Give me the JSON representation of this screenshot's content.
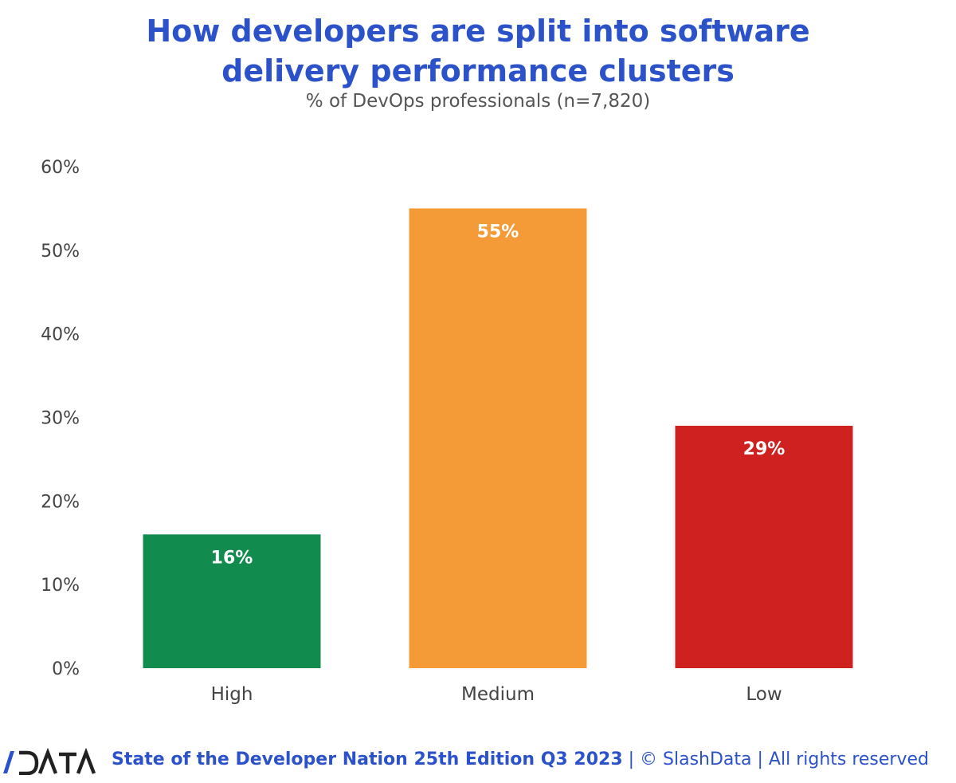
{
  "title_lines": [
    "How developers are split into software",
    "delivery performance clusters"
  ],
  "subtitle": "% of DevOps professionals (n=7,820)",
  "footer": {
    "logo_text": "/DATA",
    "edition": "State of the Developer Nation 25th Edition Q3 2023",
    "rest": " | © SlashData | All rights reserved"
  },
  "colors": {
    "title": "#2b52c9",
    "high": "#118c4e",
    "medium": "#f49b38",
    "low": "#cf2120"
  },
  "chart_data": {
    "type": "bar",
    "categories": [
      "High",
      "Medium",
      "Low"
    ],
    "values": [
      16,
      55,
      29
    ],
    "value_labels": [
      "16%",
      "55%",
      "29%"
    ],
    "bar_colors": [
      "#118c4e",
      "#f49b38",
      "#cf2120"
    ],
    "title": "How developers are split into software delivery performance clusters",
    "subtitle": "% of DevOps professionals (n=7,820)",
    "xlabel": "",
    "ylabel": "",
    "ylim": [
      0,
      60
    ],
    "yticks": [
      0,
      10,
      20,
      30,
      40,
      50,
      60
    ],
    "ytick_labels": [
      "0%",
      "10%",
      "20%",
      "30%",
      "40%",
      "50%",
      "60%"
    ],
    "grid": false,
    "legend": "none"
  }
}
